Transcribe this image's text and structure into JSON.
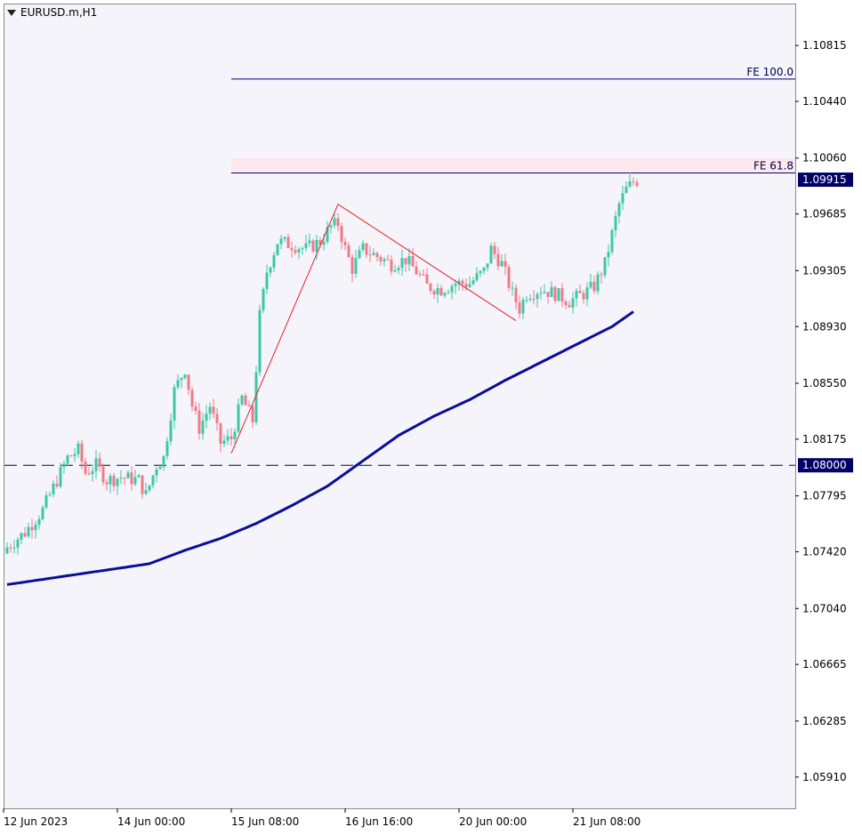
{
  "window": {
    "title": "EURUSD.m,H1",
    "menu_icon": "triangle-down-icon"
  },
  "chart_data": {
    "type": "candlestick",
    "symbol": "EURUSD.m",
    "timeframe": "H1",
    "ylim": [
      1.057,
      1.1109
    ],
    "y_ticks": [
      "1.10815",
      "1.10440",
      "1.10060",
      "1.09685",
      "1.09305",
      "1.08930",
      "1.08550",
      "1.08175",
      "1.07795",
      "1.07420",
      "1.07040",
      "1.06665",
      "1.06285",
      "1.05910"
    ],
    "x_ticks": [
      "12 Jun 2023",
      "14 Jun 00:00",
      "15 Jun 08:00",
      "16 Jun 16:00",
      "20 Jun 00:00",
      "21 Jun 08:00"
    ],
    "x_tick_index": [
      0,
      32,
      64,
      96,
      128,
      160
    ],
    "current_price": "1.09915",
    "horizontal_line": {
      "price": 1.08,
      "label": "1.08000",
      "style": "dashed"
    },
    "fib_levels": [
      {
        "label": "FE 100.0",
        "price": 1.1059,
        "start_index": 63
      },
      {
        "label": "FE 61.8",
        "price": 1.0996,
        "start_index": 63
      }
    ],
    "fib_zone": {
      "from": 1.0996,
      "to": 1.1006
    },
    "zigzag": [
      {
        "i": 63,
        "price": 1.0808
      },
      {
        "i": 93,
        "price": 1.0975
      },
      {
        "i": 143,
        "price": 1.0897
      }
    ],
    "moving_average_anchors": [
      [
        0,
        1.072
      ],
      [
        20,
        1.0727
      ],
      [
        40,
        1.0734
      ],
      [
        50,
        1.0743
      ],
      [
        60,
        1.0751
      ],
      [
        70,
        1.0761
      ],
      [
        80,
        1.0773
      ],
      [
        90,
        1.0786
      ],
      [
        100,
        1.0803
      ],
      [
        110,
        1.082
      ],
      [
        120,
        1.0833
      ],
      [
        130,
        1.0844
      ],
      [
        140,
        1.0857
      ],
      [
        150,
        1.0869
      ],
      [
        160,
        1.0881
      ],
      [
        170,
        1.0893
      ],
      [
        176,
        1.0903
      ]
    ],
    "close_anchors": [
      [
        0,
        1.0745
      ],
      [
        5,
        1.0755
      ],
      [
        10,
        1.077
      ],
      [
        14,
        1.079
      ],
      [
        17,
        1.0805
      ],
      [
        20,
        1.081
      ],
      [
        22,
        1.0795
      ],
      [
        25,
        1.08
      ],
      [
        28,
        1.079
      ],
      [
        32,
        1.0792
      ],
      [
        37,
        1.079
      ],
      [
        39,
        1.078
      ],
      [
        42,
        1.08
      ],
      [
        44,
        1.0805
      ],
      [
        47,
        1.085
      ],
      [
        50,
        1.0865
      ],
      [
        52,
        1.084
      ],
      [
        54,
        1.0825
      ],
      [
        57,
        1.084
      ],
      [
        60,
        1.0815
      ],
      [
        63,
        1.0818
      ],
      [
        66,
        1.0845
      ],
      [
        69,
        1.083
      ],
      [
        71,
        1.09
      ],
      [
        73,
        1.093
      ],
      [
        76,
        1.095
      ],
      [
        80,
        1.0948
      ],
      [
        84,
        1.0945
      ],
      [
        88,
        1.095
      ],
      [
        91,
        1.096
      ],
      [
        93,
        1.0962
      ],
      [
        95,
        1.0945
      ],
      [
        97,
        1.0932
      ],
      [
        100,
        1.0945
      ],
      [
        104,
        1.094
      ],
      [
        108,
        1.0935
      ],
      [
        112,
        1.0938
      ],
      [
        115,
        1.093
      ],
      [
        118,
        1.092
      ],
      [
        122,
        1.0918
      ],
      [
        126,
        1.0922
      ],
      [
        130,
        1.0922
      ],
      [
        134,
        1.093
      ],
      [
        136,
        1.0945
      ],
      [
        139,
        1.0935
      ],
      [
        142,
        1.0915
      ],
      [
        144,
        1.0905
      ],
      [
        146,
        1.0915
      ],
      [
        150,
        1.0918
      ],
      [
        154,
        1.0915
      ],
      [
        158,
        1.091
      ],
      [
        162,
        1.0915
      ],
      [
        165,
        1.092
      ],
      [
        168,
        1.0935
      ],
      [
        170,
        1.0955
      ],
      [
        172,
        1.0975
      ],
      [
        174,
        1.0985
      ],
      [
        176,
        1.099
      ],
      [
        177,
        1.0991
      ]
    ],
    "colors": {
      "up": "#3cc7a6",
      "down": "#f07a88",
      "ma": "#0c0c9c",
      "zigzag": "#e8202a",
      "fe_line": "#000080",
      "fe_zone": "#fde8ee",
      "badge": "#000066",
      "hline": "#000040"
    }
  }
}
